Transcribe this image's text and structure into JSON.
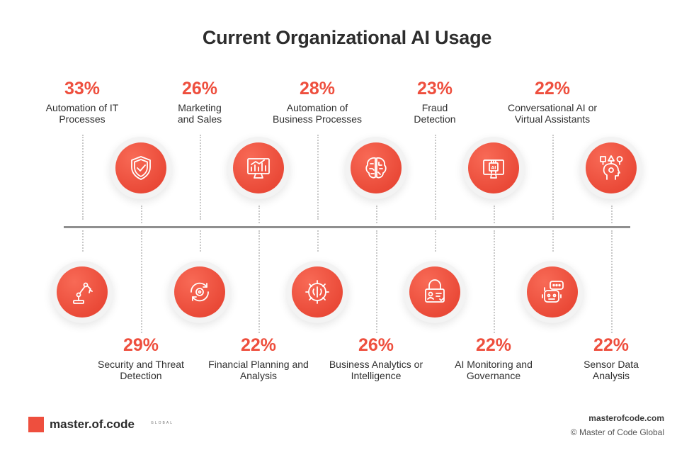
{
  "title": "Current Organizational AI Usage",
  "items": [
    {
      "percent": "33%",
      "label_line1": "Automation of IT",
      "label_line2": "Processes",
      "icon": "robot-arm-icon"
    },
    {
      "percent": "29%",
      "label_line1": "Security and Threat",
      "label_line2": "Detection",
      "icon": "shield-check-icon"
    },
    {
      "percent": "26%",
      "label_line1": "Marketing",
      "label_line2": "and Sales",
      "icon": "refresh-gear-icon"
    },
    {
      "percent": "22%",
      "label_line1": "Financial Planning and",
      "label_line2": "Analysis",
      "icon": "monitor-chart-icon"
    },
    {
      "percent": "28%",
      "label_line1": "Automation of",
      "label_line2": "Business Processes",
      "icon": "gear-brain-icon"
    },
    {
      "percent": "26%",
      "label_line1": "Business Analytics or",
      "label_line2": "Intelligence",
      "icon": "brain-circuit-icon"
    },
    {
      "percent": "23%",
      "label_line1": "Fraud",
      "label_line2": "Detection",
      "icon": "lock-id-icon"
    },
    {
      "percent": "22%",
      "label_line1": "AI Monitoring and",
      "label_line2": "Governance",
      "icon": "ai-monitor-icon"
    },
    {
      "percent": "22%",
      "label_line1": "Conversational AI or",
      "label_line2": "Virtual Assistants",
      "icon": "chatbot-icon"
    },
    {
      "percent": "22%",
      "label_line1": "Sensor Data",
      "label_line2": "Analysis",
      "icon": "head-shapes-icon"
    }
  ],
  "brand": {
    "name": "master.of.code",
    "suffix": "GLOBAL"
  },
  "footer": {
    "site": "masterofcode.com",
    "copyright": "© Master of Code Global"
  },
  "colors": {
    "accent": "#ee4f3e",
    "axis": "#8f8f8f",
    "text": "#2d2d2d"
  }
}
